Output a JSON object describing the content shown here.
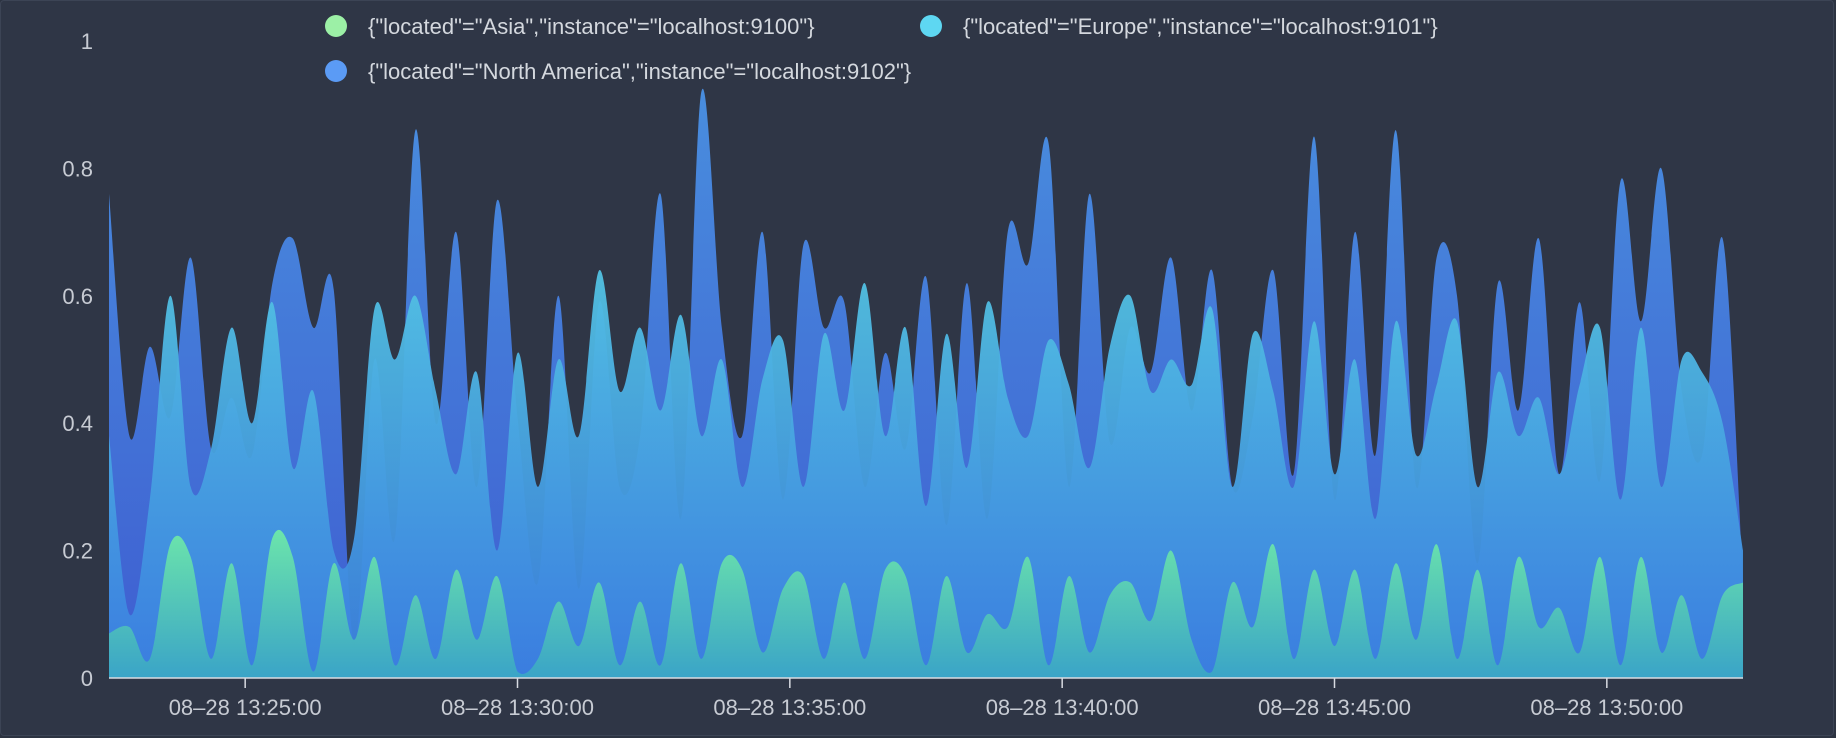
{
  "chart_data": {
    "type": "area",
    "stacked": false,
    "title": "",
    "xlabel": "",
    "ylabel": "",
    "ylim": [
      0,
      1
    ],
    "yticks": [
      "0",
      "0.2",
      "0.4",
      "0.6",
      "0.8",
      "1"
    ],
    "x_range": [
      "08-28 13:22:30",
      "08-28 13:52:30"
    ],
    "xticks": [
      "08‒28 13:25:00",
      "08‒28 13:30:00",
      "08‒28 13:35:00",
      "08‒28 13:40:00",
      "08‒28 13:45:00",
      "08‒28 13:50:00"
    ],
    "legend_position": "top",
    "series": [
      {
        "name": "{\"located\"=\"Asia\",\"instance\"=\"localhost:9100\"}",
        "color": "#9cf0a6",
        "values": [
          0.07,
          0.08,
          0.03,
          0.21,
          0.19,
          0.03,
          0.18,
          0.02,
          0.22,
          0.19,
          0.01,
          0.18,
          0.06,
          0.19,
          0.02,
          0.13,
          0.03,
          0.17,
          0.06,
          0.16,
          0.01,
          0.03,
          0.12,
          0.05,
          0.15,
          0.02,
          0.12,
          0.02,
          0.18,
          0.03,
          0.18,
          0.17,
          0.04,
          0.14,
          0.16,
          0.03,
          0.15,
          0.03,
          0.17,
          0.16,
          0.02,
          0.16,
          0.04,
          0.1,
          0.08,
          0.19,
          0.02,
          0.16,
          0.04,
          0.13,
          0.15,
          0.09,
          0.2,
          0.06,
          0.01,
          0.15,
          0.08,
          0.21,
          0.03,
          0.17,
          0.05,
          0.17,
          0.03,
          0.18,
          0.06,
          0.21,
          0.03,
          0.17,
          0.02,
          0.19,
          0.08,
          0.11,
          0.04,
          0.19,
          0.02,
          0.19,
          0.04,
          0.13,
          0.03,
          0.13,
          0.15
        ]
      },
      {
        "name": "{\"located\"=\"Europe\",\"instance\"=\"localhost:9101\"}",
        "color": "#5ed7f2",
        "values": [
          0.38,
          0.1,
          0.28,
          0.6,
          0.3,
          0.36,
          0.55,
          0.4,
          0.59,
          0.33,
          0.45,
          0.2,
          0.22,
          0.58,
          0.5,
          0.6,
          0.45,
          0.32,
          0.48,
          0.2,
          0.51,
          0.3,
          0.5,
          0.38,
          0.64,
          0.45,
          0.55,
          0.42,
          0.57,
          0.38,
          0.5,
          0.3,
          0.47,
          0.53,
          0.3,
          0.54,
          0.42,
          0.62,
          0.38,
          0.55,
          0.27,
          0.54,
          0.33,
          0.59,
          0.44,
          0.38,
          0.53,
          0.46,
          0.33,
          0.52,
          0.6,
          0.45,
          0.5,
          0.46,
          0.58,
          0.3,
          0.54,
          0.45,
          0.3,
          0.56,
          0.32,
          0.5,
          0.25,
          0.56,
          0.35,
          0.46,
          0.56,
          0.3,
          0.48,
          0.38,
          0.44,
          0.32,
          0.46,
          0.55,
          0.28,
          0.55,
          0.3,
          0.5,
          0.48,
          0.4,
          0.2
        ]
      },
      {
        "name": "{\"located\"=\"North America\",\"instance\"=\"localhost:9102\"}",
        "color": "#5b9bf5",
        "values": [
          0.76,
          0.38,
          0.52,
          0.41,
          0.66,
          0.36,
          0.44,
          0.35,
          0.62,
          0.69,
          0.55,
          0.61,
          0.05,
          0.5,
          0.22,
          0.86,
          0.4,
          0.7,
          0.3,
          0.75,
          0.41,
          0.15,
          0.6,
          0.14,
          0.59,
          0.3,
          0.38,
          0.76,
          0.25,
          0.92,
          0.55,
          0.38,
          0.7,
          0.28,
          0.68,
          0.55,
          0.59,
          0.3,
          0.51,
          0.36,
          0.63,
          0.24,
          0.62,
          0.25,
          0.7,
          0.65,
          0.84,
          0.3,
          0.76,
          0.37,
          0.55,
          0.48,
          0.66,
          0.42,
          0.64,
          0.3,
          0.41,
          0.64,
          0.32,
          0.85,
          0.28,
          0.7,
          0.35,
          0.86,
          0.3,
          0.66,
          0.6,
          0.18,
          0.62,
          0.42,
          0.69,
          0.32,
          0.59,
          0.31,
          0.78,
          0.56,
          0.8,
          0.45,
          0.35,
          0.69,
          0.15
        ]
      }
    ]
  }
}
